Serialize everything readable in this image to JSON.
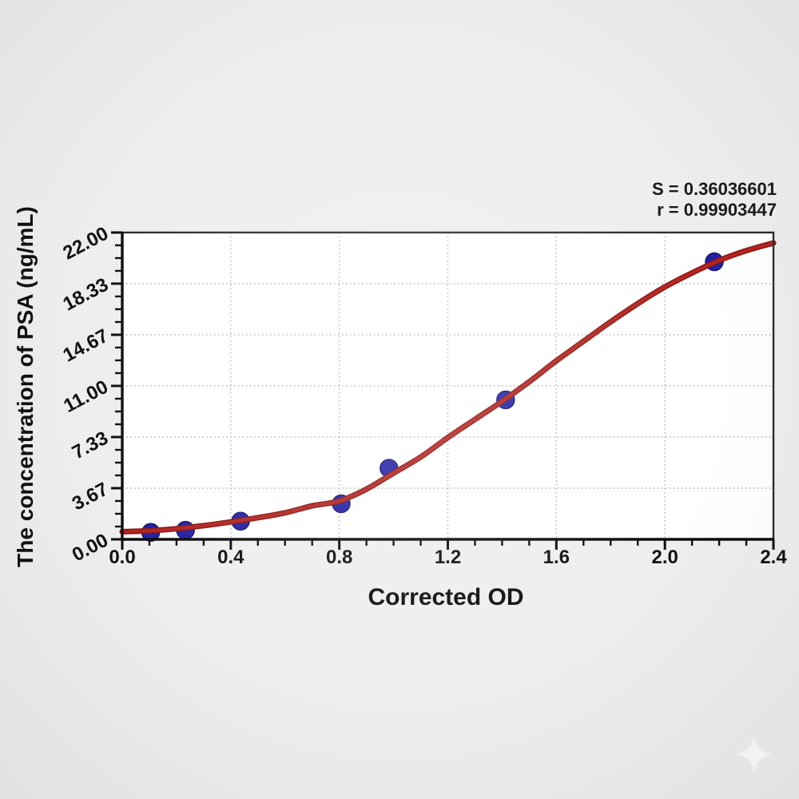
{
  "figure": {
    "annotation": {
      "line1": "S = 0.36036601",
      "line2": "r = 0.99903447"
    },
    "watermark": "sparkle-star-icon",
    "colors": {
      "background": "#eeeeee",
      "plot_background": "#ffffff",
      "curve": "#b22420",
      "curve_outline": "#871713",
      "point_fill": "#2521a2",
      "point_edge": "#161470",
      "grid": "#adadad",
      "axis": "#0d0d0d",
      "frame": "#2d2d2d",
      "text": "#111111",
      "watermark_color": "#ffffff"
    }
  },
  "chart_data": {
    "type": "scatter",
    "title": "",
    "xlabel": "Corrected OD",
    "ylabel": "The concentration of PSA (ng/mL)",
    "xlim": [
      0,
      2.4
    ],
    "ylim": [
      0,
      22
    ],
    "grid": "dotted at major ticks",
    "legend": "none",
    "x_ticks": [
      {
        "value": 0.0,
        "label": "0.0"
      },
      {
        "value": 0.4,
        "label": "0.4"
      },
      {
        "value": 0.8,
        "label": "0.8"
      },
      {
        "value": 1.2,
        "label": "1.2"
      },
      {
        "value": 1.6,
        "label": "1.6"
      },
      {
        "value": 2.0,
        "label": "2.0"
      },
      {
        "value": 2.4,
        "label": "2.4"
      }
    ],
    "x_minor_step": 0.1,
    "y_ticks": [
      {
        "value": 0.0,
        "label": "0.00"
      },
      {
        "value": 3.6667,
        "label": "3.67"
      },
      {
        "value": 7.3333,
        "label": "7.33"
      },
      {
        "value": 11.0,
        "label": "11.00"
      },
      {
        "value": 14.6667,
        "label": "14.67"
      },
      {
        "value": 18.3333,
        "label": "18.33"
      },
      {
        "value": 22.0,
        "label": "22.00"
      }
    ],
    "y_minor_per_major": 3,
    "statistics": {
      "S": "0.36036601",
      "r": "0.99903447"
    },
    "series": [
      {
        "name": "standard-points",
        "type": "scatter",
        "marker": "circle",
        "marker_radius_px": 11,
        "points": [
          [
            0.105,
            0.5
          ],
          [
            0.233,
            0.65
          ],
          [
            0.436,
            1.3
          ],
          [
            0.807,
            2.55
          ],
          [
            0.983,
            5.1
          ],
          [
            1.413,
            10.0
          ],
          [
            2.182,
            19.9
          ]
        ]
      },
      {
        "name": "fitted-standard-curve",
        "type": "line",
        "points": [
          [
            0.0,
            0.55
          ],
          [
            0.1,
            0.62
          ],
          [
            0.2,
            0.76
          ],
          [
            0.3,
            0.98
          ],
          [
            0.4,
            1.25
          ],
          [
            0.5,
            1.55
          ],
          [
            0.6,
            1.9
          ],
          [
            0.7,
            2.4
          ],
          [
            0.8,
            2.75
          ],
          [
            0.9,
            3.6
          ],
          [
            1.0,
            4.75
          ],
          [
            1.1,
            5.9
          ],
          [
            1.2,
            7.3
          ],
          [
            1.3,
            8.6
          ],
          [
            1.4,
            9.9
          ],
          [
            1.5,
            11.3
          ],
          [
            1.6,
            12.8
          ],
          [
            1.7,
            14.2
          ],
          [
            1.8,
            15.6
          ],
          [
            1.9,
            16.9
          ],
          [
            2.0,
            18.1
          ],
          [
            2.1,
            19.1
          ],
          [
            2.2,
            20.0
          ],
          [
            2.3,
            20.7
          ],
          [
            2.4,
            21.25
          ]
        ]
      }
    ]
  }
}
